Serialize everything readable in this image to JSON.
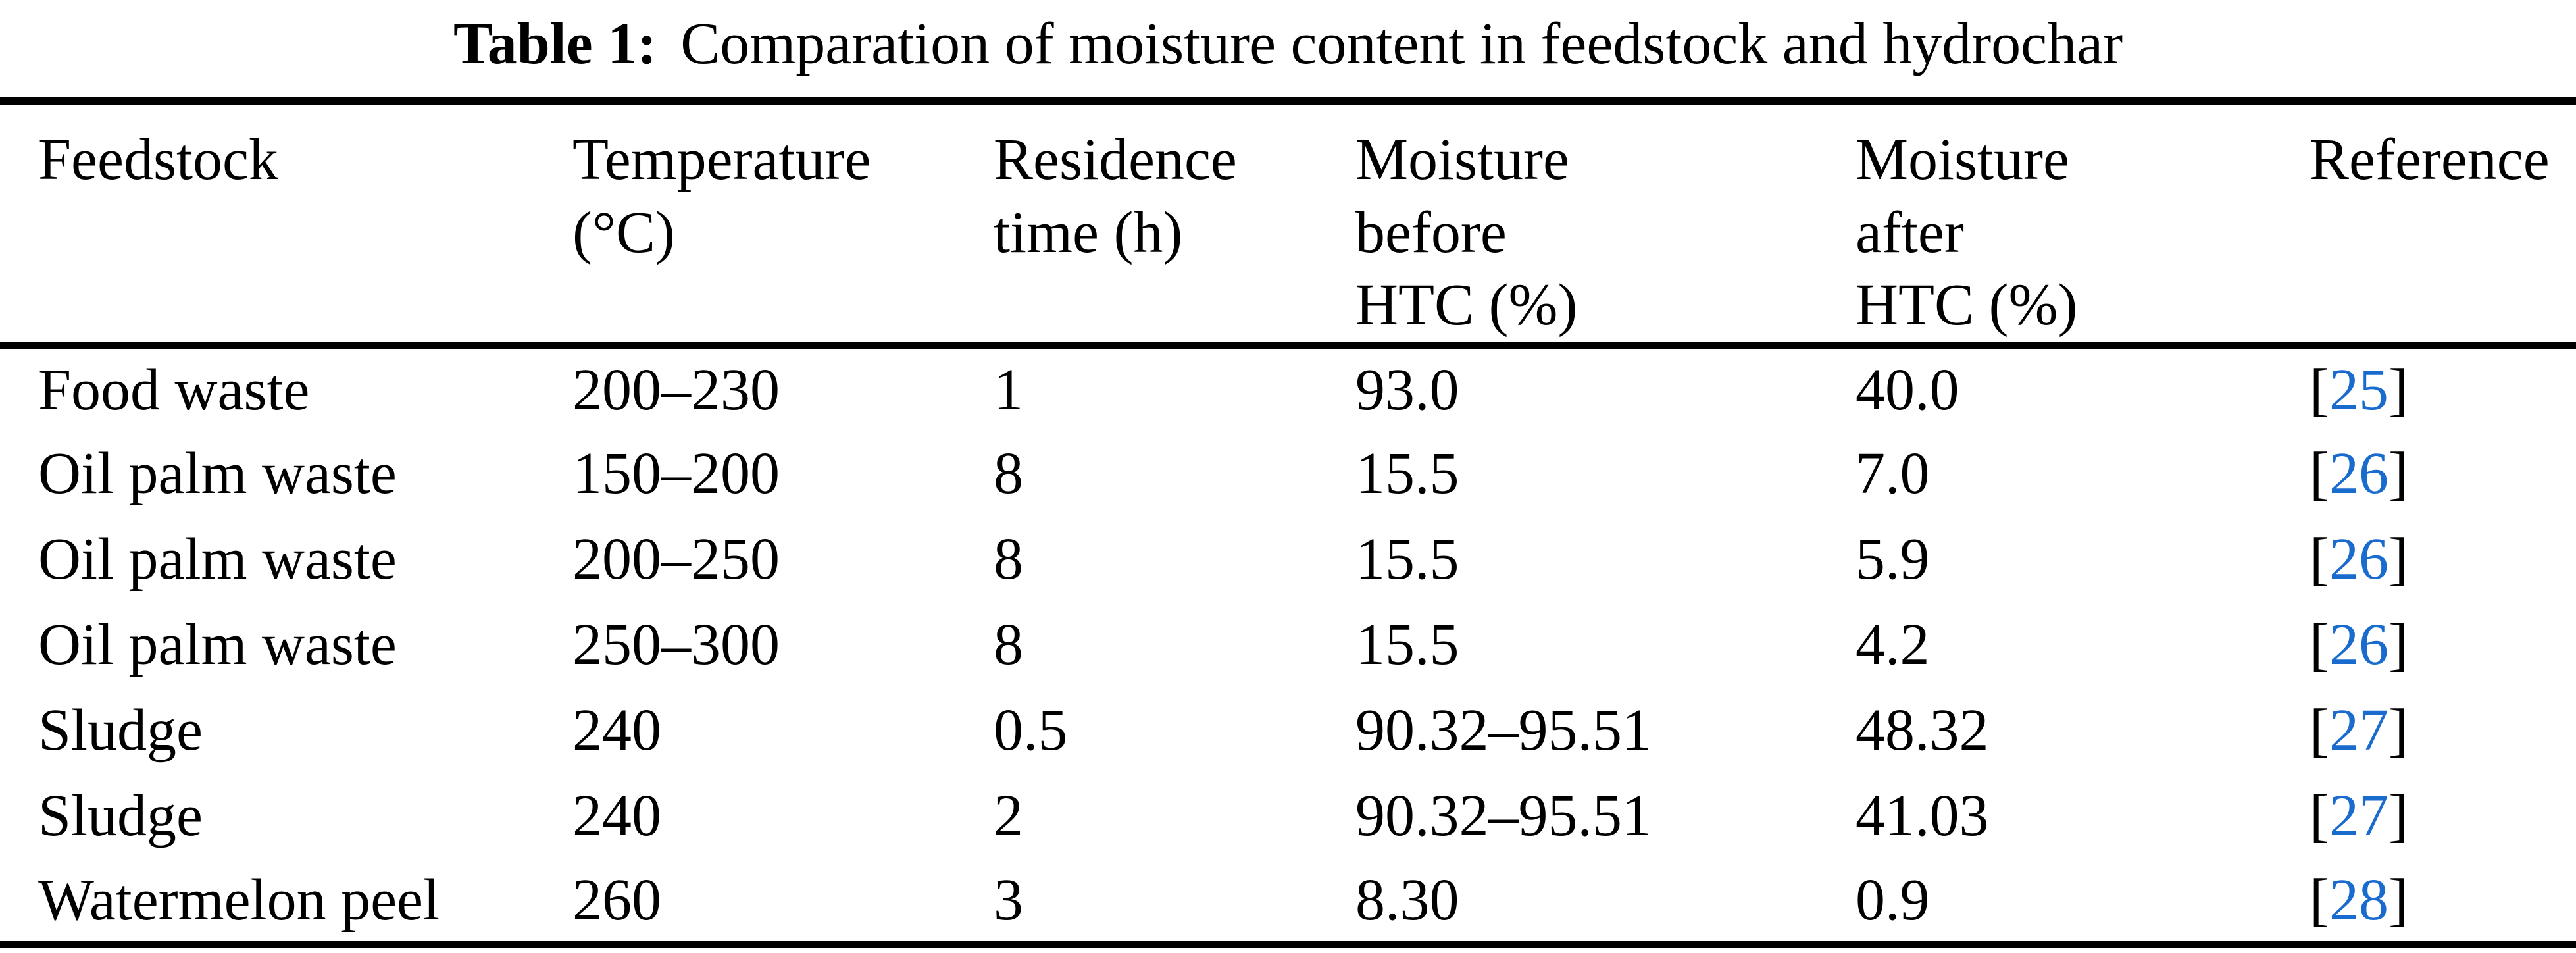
{
  "title": {
    "label": "Table 1:",
    "text": "Comparation of moisture content in feedstock and hydrochar"
  },
  "colors": {
    "ink": "#000000",
    "paper": "#ffffff",
    "reference_blue": "#1a6bce"
  },
  "ref_brackets": {
    "open": "[",
    "close": "]"
  },
  "table": {
    "columns": [
      {
        "id": "feedstock",
        "header": "Feedstock"
      },
      {
        "id": "temperature",
        "header": "Temperature\n(°C)"
      },
      {
        "id": "residence_time",
        "header": "Residence\ntime (h)"
      },
      {
        "id": "moisture_before",
        "header": "Moisture\nbefore\nHTC (%)"
      },
      {
        "id": "moisture_after",
        "header": "Moisture\nafter\nHTC (%)"
      },
      {
        "id": "reference",
        "header": "Reference"
      }
    ],
    "rows": [
      {
        "feedstock": "Food waste",
        "temperature": "200–230",
        "residence_time": "1",
        "moisture_before": "93.0",
        "moisture_after": "40.0",
        "reference": "25"
      },
      {
        "feedstock": "Oil palm waste",
        "temperature": "150–200",
        "residence_time": "8",
        "moisture_before": "15.5",
        "moisture_after": "7.0",
        "reference": "26"
      },
      {
        "feedstock": "Oil palm waste",
        "temperature": "200–250",
        "residence_time": "8",
        "moisture_before": "15.5",
        "moisture_after": "5.9",
        "reference": "26"
      },
      {
        "feedstock": "Oil palm waste",
        "temperature": "250–300",
        "residence_time": "8",
        "moisture_before": "15.5",
        "moisture_after": "4.2",
        "reference": "26"
      },
      {
        "feedstock": "Sludge",
        "temperature": "240",
        "residence_time": "0.5",
        "moisture_before": "90.32–95.51",
        "moisture_after": "48.32",
        "reference": "27"
      },
      {
        "feedstock": "Sludge",
        "temperature": "240",
        "residence_time": "2",
        "moisture_before": "90.32–95.51",
        "moisture_after": "41.03",
        "reference": "27"
      },
      {
        "feedstock": "Watermelon peel",
        "temperature": "260",
        "residence_time": "3",
        "moisture_before": "8.30",
        "moisture_after": "0.9",
        "reference": "28"
      }
    ]
  }
}
